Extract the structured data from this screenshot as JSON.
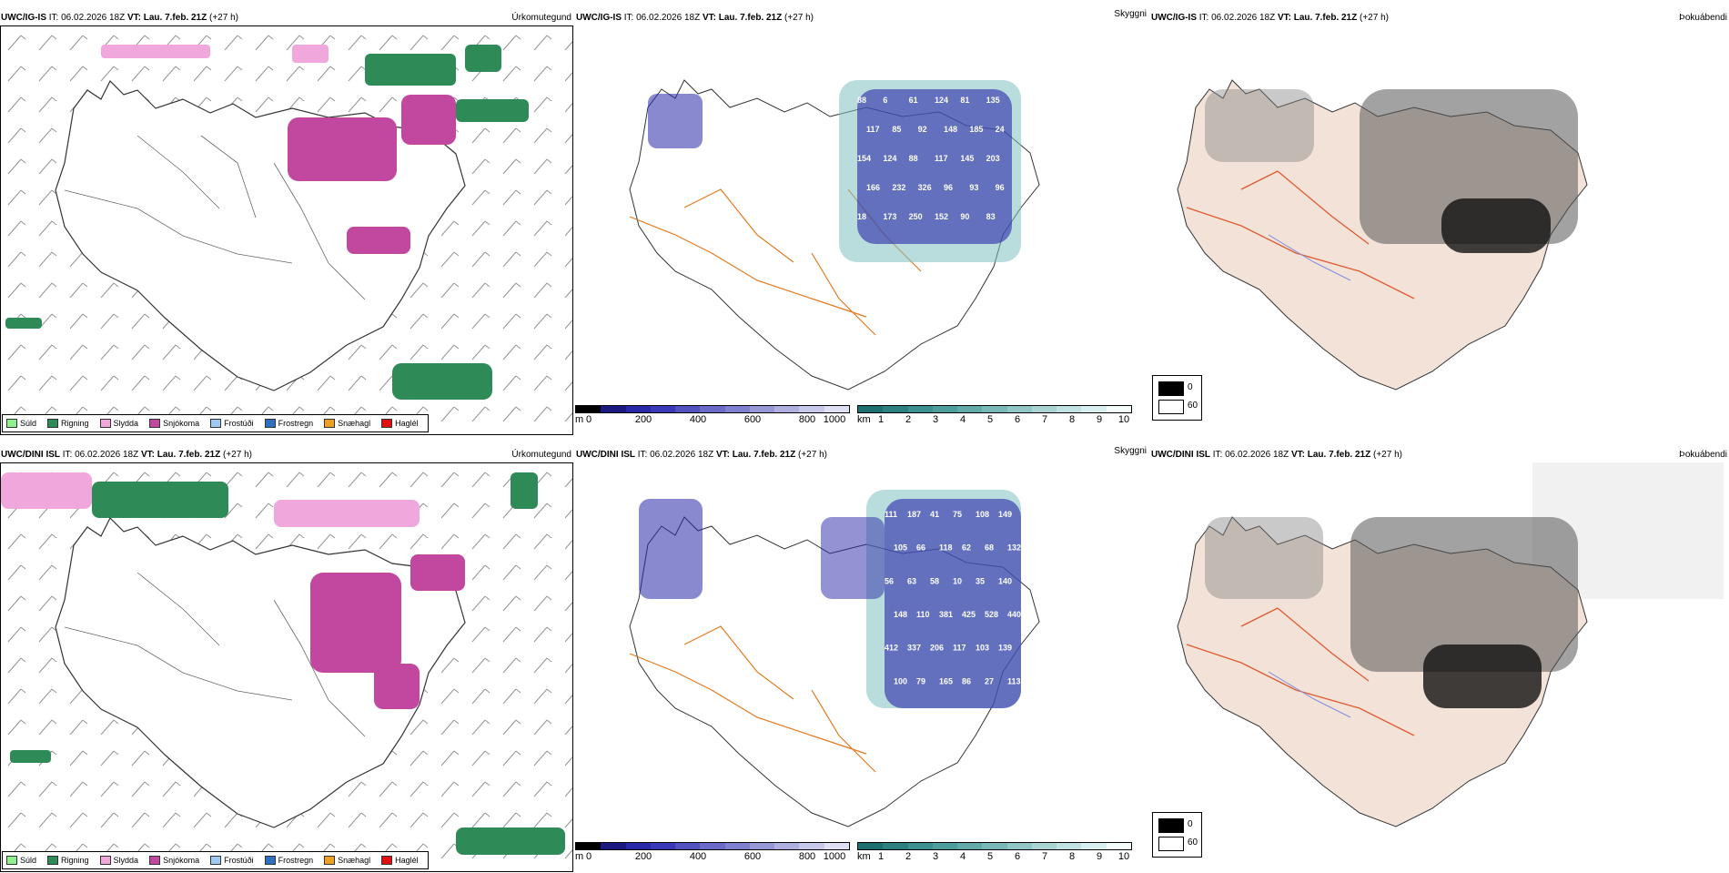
{
  "rows": [
    {
      "precip": {
        "model": "UWC/IG-IS",
        "it_label": "IT:",
        "it": "06.02.2026 18Z",
        "vt_label": "VT:",
        "vt": "Lau. 7.feb. 21Z",
        "lead": "(+27 h)",
        "right": "Úrkomutegund"
      },
      "snow": {
        "model": "UWC/IG-IS",
        "it_label": "IT:",
        "it": "06.02.2026 18Z",
        "vt_label": "VT:",
        "vt": "Lau. 7.feb. 21Z",
        "lead": "(+27 h)",
        "right": "Skyggni"
      },
      "fog": {
        "model": "UWC/IG-IS",
        "it_label": "IT:",
        "it": "06.02.2026 18Z",
        "vt_label": "VT:",
        "vt": "Lau. 7.feb. 21Z",
        "lead": "(+27 h)",
        "right": "Þokuábendi"
      }
    },
    {
      "precip": {
        "model": "UWC/DINI ISL",
        "it_label": "IT:",
        "it": "06.02.2026 18Z",
        "vt_label": "VT:",
        "vt": "Lau. 7.feb. 21Z",
        "lead": "(+27 h)",
        "right": "Úrkomutegund"
      },
      "snow": {
        "model": "UWC/DINI ISL",
        "it_label": "IT:",
        "it": "06.02.2026 18Z",
        "vt_label": "VT:",
        "vt": "Lau. 7.feb. 21Z",
        "lead": "(+27 h)",
        "right": "Skyggni"
      },
      "fog": {
        "model": "UWC/DINI ISL",
        "it_label": "IT:",
        "it": "06.02.2026 18Z",
        "vt_label": "VT:",
        "vt": "Lau. 7.feb. 21Z",
        "lead": "(+27 h)",
        "right": "Þokuábendi"
      }
    }
  ],
  "precip_legend": [
    {
      "label": "Súld",
      "color": "#90ee90"
    },
    {
      "label": "Rigning",
      "color": "#2e8b57"
    },
    {
      "label": "Slydda",
      "color": "#f0a8dc"
    },
    {
      "label": "Snjókoma",
      "color": "#c2479f"
    },
    {
      "label": "Frostúði",
      "color": "#9ec9f0"
    },
    {
      "label": "Frostregn",
      "color": "#2f6fc0"
    },
    {
      "label": "Snæhagl",
      "color": "#f0a020"
    },
    {
      "label": "Haglél",
      "color": "#e01010"
    }
  ],
  "snow_depth_scale": {
    "unit": "m",
    "ticks": [
      "0",
      "200",
      "400",
      "600",
      "800",
      "1000"
    ],
    "colors": [
      "#000000",
      "#1a1a80",
      "#2828a8",
      "#3a3ab8",
      "#5252c0",
      "#6a6ac8",
      "#8080d0",
      "#9898d8",
      "#b0b0e0",
      "#c8c8ea",
      "#e0e0f4"
    ]
  },
  "visibility_scale": {
    "unit": "km",
    "ticks": [
      "1",
      "2",
      "3",
      "4",
      "5",
      "6",
      "7",
      "8",
      "9",
      "10"
    ],
    "colors": [
      "#1e6f6f",
      "#2d8080",
      "#3d9090",
      "#4d9d9d",
      "#62aaaa",
      "#78b8b8",
      "#90c6c6",
      "#a8d4d4",
      "#c0e2e2",
      "#d8f0f0",
      "#f4fcfc"
    ]
  },
  "fog_legend": [
    {
      "value": "0",
      "color": "#000000"
    },
    {
      "value": "60",
      "color": "#ffffff"
    }
  ],
  "row1_snow_labels": [
    "88",
    "6",
    "61",
    "124",
    "81",
    "135",
    "117",
    "85",
    "92",
    "148",
    "185",
    "24",
    "154",
    "124",
    "88",
    "117",
    "145",
    "203",
    "166",
    "232",
    "326",
    "96",
    "93",
    "96",
    "18",
    "173",
    "250",
    "152",
    "90",
    "83"
  ],
  "row2_snow_labels": [
    "111",
    "187",
    "41",
    "75",
    "108",
    "149",
    "105",
    "66",
    "118",
    "62",
    "68",
    "132",
    "56",
    "63",
    "58",
    "10",
    "35",
    "140",
    "148",
    "110",
    "381",
    "425",
    "528",
    "440",
    "412",
    "337",
    "206",
    "117",
    "103",
    "139",
    "100",
    "79",
    "165",
    "86",
    "27",
    "113"
  ]
}
